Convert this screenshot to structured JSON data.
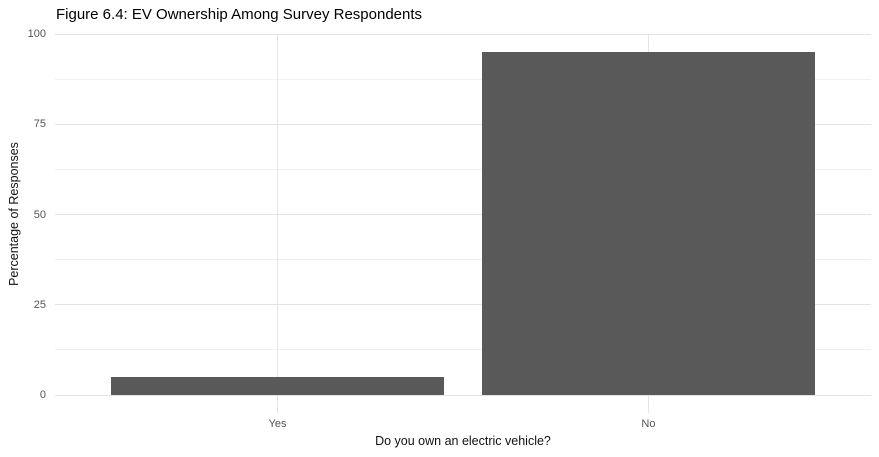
{
  "chart_data": {
    "type": "bar",
    "title": "Figure 6.4: EV Ownership Among Survey Respondents",
    "categories": [
      "Yes",
      "No"
    ],
    "values": [
      5,
      95
    ],
    "xlabel": "Do you own an electric vehicle?",
    "ylabel": "Percentage of Responses",
    "ylim": [
      0,
      100
    ],
    "yticks": [
      0,
      25,
      50,
      75,
      100
    ],
    "yticks_minor": [
      12.5,
      37.5,
      62.5,
      87.5
    ],
    "grid": "horizontal major+minor; vertical major at category centers",
    "legend": "none",
    "bar_width_fraction": 0.9
  },
  "style": {
    "bar_fill": "#595959",
    "grid_major": "#e4e4e4",
    "grid_minor": "#f1f1f1",
    "tick_label_color": "#555555",
    "axis_title_color": "#111111",
    "title_color": "#000000",
    "background": "#ffffff"
  }
}
